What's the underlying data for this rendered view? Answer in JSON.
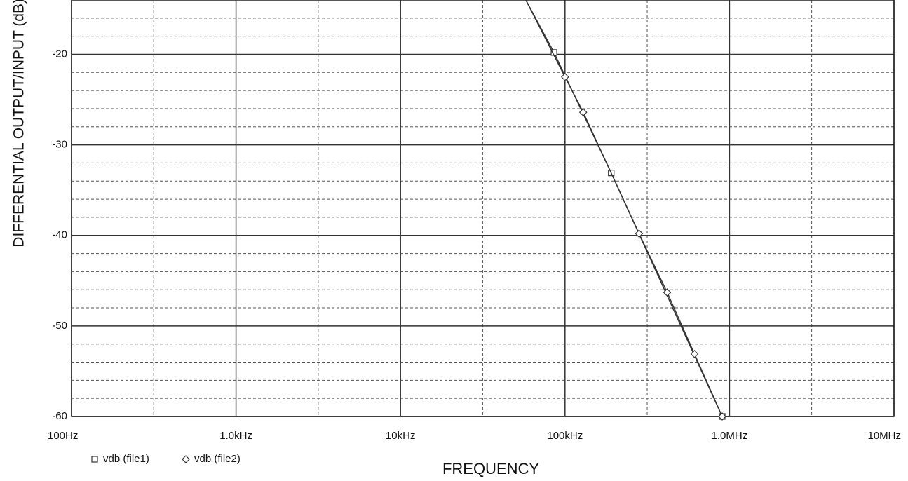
{
  "chart_data": {
    "type": "line",
    "x_label": "FREQUENCY",
    "y_label": "DIFFERENTIAL OUTPUT/INPUT (dB)",
    "xscale": "log",
    "xlim": [
      100,
      10000000
    ],
    "ylim": [
      -60,
      -14
    ],
    "xticks": [
      {
        "value": 100,
        "label": "100Hz"
      },
      {
        "value": 1000,
        "label": "1.0kHz"
      },
      {
        "value": 10000,
        "label": "10kHz"
      },
      {
        "value": 100000,
        "label": "100kHz"
      },
      {
        "value": 1000000,
        "label": "1.0MHz"
      },
      {
        "value": 10000000,
        "label": "10MHz"
      }
    ],
    "yticks": [
      -60,
      -50,
      -40,
      -30,
      -20
    ],
    "xminorticks": [
      316,
      3160,
      31600,
      316000,
      3160000
    ],
    "yminorticks": [
      -58,
      -56,
      -54,
      -52,
      -48,
      -46,
      -44,
      -42,
      -38,
      -36,
      -34,
      -32,
      -28,
      -26,
      -24,
      -22,
      -18,
      -16
    ],
    "grid": true,
    "series": [
      {
        "name": "vdb (file1)",
        "color": "#333333",
        "marker": "square",
        "x": [
          57800,
          85700,
          191000,
          903000
        ],
        "values": [
          -14,
          -19.8,
          -33.1,
          -60
        ]
      },
      {
        "name": "vdb (file2)",
        "color": "#333333",
        "marker": "diamond",
        "x": [
          57800,
          100000,
          129000,
          282000,
          418000,
          613000,
          903000
        ],
        "values": [
          -14,
          -22.5,
          -26.4,
          -39.8,
          -46.3,
          -53.1,
          -60
        ]
      }
    ]
  }
}
